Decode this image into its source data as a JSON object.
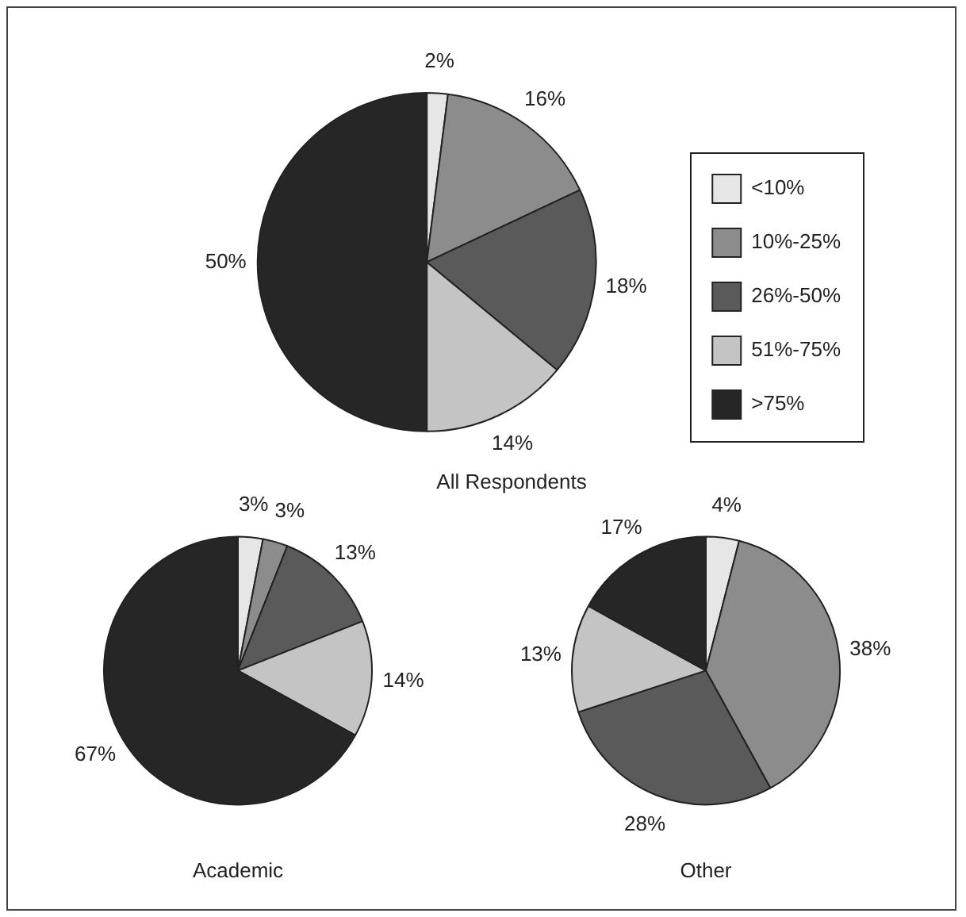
{
  "chart_data": [
    {
      "type": "pie",
      "title": "All Respondents",
      "categories": [
        "<10%",
        "10%-25%",
        "26%-50%",
        "51%-75%",
        ">75%"
      ],
      "values": [
        2,
        16,
        18,
        14,
        50
      ],
      "value_labels": [
        "2%",
        "16%",
        "18%",
        "14%",
        "50%"
      ],
      "colors": [
        "#e6e6e6",
        "#8c8c8c",
        "#5a5a5a",
        "#c4c4c4",
        "#262626"
      ],
      "legend": "right"
    },
    {
      "type": "pie",
      "title": "Academic",
      "categories": [
        null,
        null,
        null,
        null,
        null
      ],
      "values": [
        3,
        3,
        13,
        14,
        67
      ],
      "value_labels": [
        "3%",
        "3%",
        "13%",
        "14%",
        "67%"
      ],
      "colors": [
        "#e6e6e6",
        "#8c8c8c",
        "#5a5a5a",
        "#c4c4c4",
        "#262626"
      ]
    },
    {
      "type": "pie",
      "title": "Other",
      "categories": [
        null,
        null,
        null,
        null,
        null
      ],
      "values": [
        4,
        38,
        28,
        13,
        17
      ],
      "value_labels": [
        "4%",
        "38%",
        "28%",
        "13%",
        "17%"
      ],
      "colors": [
        "#e6e6e6",
        "#8c8c8c",
        "#5a5a5a",
        "#c4c4c4",
        "#262626"
      ]
    }
  ]
}
